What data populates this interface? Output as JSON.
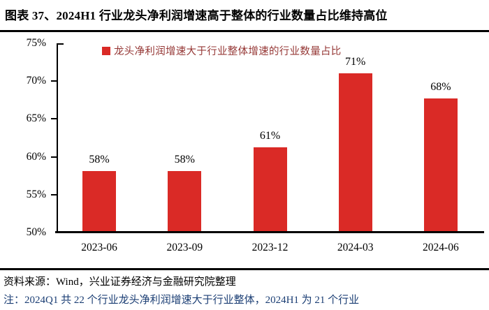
{
  "figure": {
    "title": "图表 37、2024H1 行业龙头净利润增速高于整体的行业数量占比维持高位"
  },
  "legend": {
    "label": "龙头净利润增速大于行业整体增速的行业数量占比"
  },
  "chart_data": {
    "type": "bar",
    "title": "2024H1 行业龙头净利润增速高于整体的行业数量占比维持高位",
    "categories": [
      "2023-06",
      "2023-09",
      "2023-12",
      "2024-03",
      "2024-06"
    ],
    "series": [
      {
        "name": "龙头净利润增速大于行业整体增速的行业数量占比",
        "values": [
          58.1,
          58.1,
          61.3,
          71.0,
          67.7
        ],
        "data_labels": [
          "58%",
          "58%",
          "61%",
          "71%",
          "68%"
        ]
      }
    ],
    "xlabel": "",
    "ylabel": "",
    "ylim": [
      50,
      75
    ],
    "ytick_values": [
      50,
      55,
      60,
      65,
      70,
      75
    ],
    "ytick_labels": [
      "50%",
      "55%",
      "60%",
      "65%",
      "70%",
      "75%"
    ],
    "grid": false,
    "legend_position": "top-center"
  },
  "footer": {
    "source": "资料来源：Wind，兴业证券经济与金融研究院整理",
    "note": "注：2024Q1 共 22 个行业龙头净利润增速大于行业整体，2024H1 为 21 个行业"
  },
  "colors": {
    "bar": "#DA2A26",
    "legend_text": "#953735",
    "note_text": "#1B3E74",
    "axis": "#000000",
    "title_text": "#000000"
  }
}
